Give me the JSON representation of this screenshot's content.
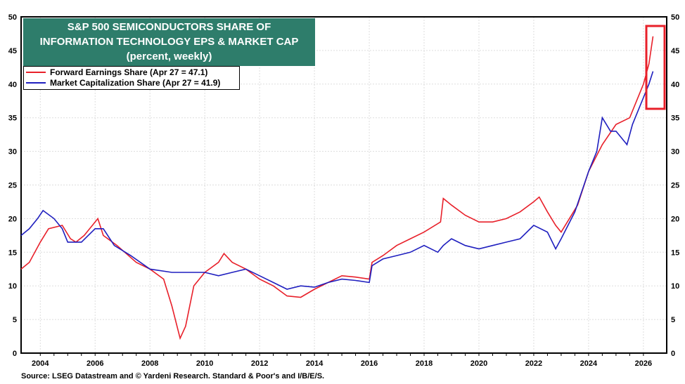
{
  "chart_data": {
    "type": "line",
    "title": [
      "S&P 500 SEMICONDUCTORS SHARE  OF",
      "INFORMATION TECHNOLOGY EPS & MARKET CAP",
      "(percent, weekly)"
    ],
    "xlim": [
      2003.3,
      2026.85
    ],
    "ylim": [
      0,
      50
    ],
    "x_ticks": [
      "2004",
      "2006",
      "2008",
      "2010",
      "2012",
      "2014",
      "2016",
      "2018",
      "2020",
      "2022",
      "2024",
      "2026"
    ],
    "y_ticks": [
      "0",
      "5",
      "10",
      "15",
      "20",
      "25",
      "30",
      "35",
      "40",
      "45",
      "50"
    ],
    "legend_position": "top-left",
    "series": [
      {
        "name": "Forward Earnings Share (Apr 27 = 47.1)",
        "color": "#e8202a",
        "points": [
          [
            2003.3,
            12.5
          ],
          [
            2003.6,
            13.5
          ],
          [
            2004,
            16.5
          ],
          [
            2004.3,
            18.5
          ],
          [
            2004.8,
            19
          ],
          [
            2005.1,
            17
          ],
          [
            2005.3,
            16.5
          ],
          [
            2005.6,
            17.5
          ],
          [
            2006,
            19.5
          ],
          [
            2006.1,
            20
          ],
          [
            2006.3,
            17.5
          ],
          [
            2006.8,
            16
          ],
          [
            2007.5,
            13.5
          ],
          [
            2008,
            12.5
          ],
          [
            2008.5,
            11
          ],
          [
            2008.8,
            7
          ],
          [
            2009.1,
            2.2
          ],
          [
            2009.3,
            4
          ],
          [
            2009.6,
            10
          ],
          [
            2010,
            12
          ],
          [
            2010.5,
            13.5
          ],
          [
            2010.7,
            14.8
          ],
          [
            2011,
            13.5
          ],
          [
            2011.5,
            12.5
          ],
          [
            2012,
            11
          ],
          [
            2012.5,
            10
          ],
          [
            2013,
            8.5
          ],
          [
            2013.5,
            8.3
          ],
          [
            2014,
            9.5
          ],
          [
            2014.5,
            10.5
          ],
          [
            2015,
            11.5
          ],
          [
            2015.5,
            11.3
          ],
          [
            2016,
            11
          ],
          [
            2016.1,
            13.5
          ],
          [
            2016.5,
            14.5
          ],
          [
            2017,
            16
          ],
          [
            2017.5,
            17
          ],
          [
            2018,
            18
          ],
          [
            2018.6,
            19.5
          ],
          [
            2018.7,
            23
          ],
          [
            2019,
            22
          ],
          [
            2019.5,
            20.5
          ],
          [
            2020,
            19.5
          ],
          [
            2020.5,
            19.5
          ],
          [
            2021,
            20
          ],
          [
            2021.5,
            21
          ],
          [
            2022,
            22.5
          ],
          [
            2022.2,
            23.2
          ],
          [
            2022.5,
            21
          ],
          [
            2022.8,
            19
          ],
          [
            2023,
            18
          ],
          [
            2023.3,
            20
          ],
          [
            2023.6,
            22
          ],
          [
            2024,
            27
          ],
          [
            2024.5,
            31
          ],
          [
            2025,
            34
          ],
          [
            2025.5,
            35
          ],
          [
            2026,
            40
          ],
          [
            2026.2,
            43
          ],
          [
            2026.35,
            47.1
          ]
        ]
      },
      {
        "name": "Market Capitalization Share  (Apr 27 = 41.9)",
        "color": "#1f1fbf",
        "points": [
          [
            2003.3,
            17.5
          ],
          [
            2003.6,
            18.5
          ],
          [
            2003.9,
            20
          ],
          [
            2004.1,
            21.2
          ],
          [
            2004.5,
            20
          ],
          [
            2004.8,
            18.5
          ],
          [
            2005,
            16.5
          ],
          [
            2005.5,
            16.5
          ],
          [
            2006,
            18.5
          ],
          [
            2006.3,
            18.5
          ],
          [
            2006.7,
            16
          ],
          [
            2007.3,
            14.5
          ],
          [
            2008,
            12.5
          ],
          [
            2008.8,
            12
          ],
          [
            2009.5,
            12
          ],
          [
            2010,
            12
          ],
          [
            2010.5,
            11.5
          ],
          [
            2011,
            12
          ],
          [
            2011.5,
            12.5
          ],
          [
            2012,
            11.5
          ],
          [
            2012.5,
            10.5
          ],
          [
            2013,
            9.5
          ],
          [
            2013.5,
            10
          ],
          [
            2014,
            9.8
          ],
          [
            2014.5,
            10.5
          ],
          [
            2015,
            11
          ],
          [
            2015.5,
            10.8
          ],
          [
            2016,
            10.5
          ],
          [
            2016.1,
            13
          ],
          [
            2016.5,
            14
          ],
          [
            2017,
            14.5
          ],
          [
            2017.5,
            15
          ],
          [
            2018,
            16
          ],
          [
            2018.5,
            15
          ],
          [
            2018.7,
            16
          ],
          [
            2019,
            17
          ],
          [
            2019.5,
            16
          ],
          [
            2020,
            15.5
          ],
          [
            2020.5,
            16
          ],
          [
            2021,
            16.5
          ],
          [
            2021.5,
            17
          ],
          [
            2022,
            19
          ],
          [
            2022.5,
            18
          ],
          [
            2022.8,
            15.5
          ],
          [
            2023,
            17
          ],
          [
            2023.5,
            21
          ],
          [
            2024,
            27
          ],
          [
            2024.3,
            30
          ],
          [
            2024.5,
            35
          ],
          [
            2024.8,
            33
          ],
          [
            2025,
            33
          ],
          [
            2025.4,
            31
          ],
          [
            2025.6,
            34
          ],
          [
            2026,
            38
          ],
          [
            2026.2,
            40
          ],
          [
            2026.35,
            41.9
          ]
        ]
      }
    ],
    "source": "Source: LSEG Datastream and © Yardeni Research. Standard & Poor's and I/B/E/S.",
    "highlight_color": "#e8202a"
  }
}
